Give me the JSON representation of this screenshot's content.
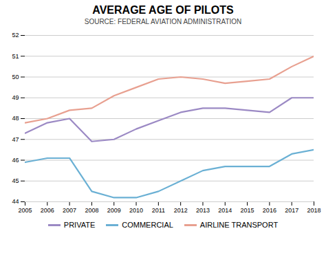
{
  "chart_data": {
    "type": "line",
    "title": "AVERAGE AGE OF PILOTS",
    "subtitle": "SOURCE: FEDERAL AVIATION ADMINISTRATION",
    "x": [
      2005,
      2006,
      2007,
      2008,
      2009,
      2010,
      2011,
      2012,
      2013,
      2014,
      2015,
      2016,
      2017,
      2018
    ],
    "series": [
      {
        "name": "PRIVATE",
        "color": "#9b89c4",
        "values": [
          47.3,
          47.8,
          48.0,
          46.9,
          47.0,
          47.5,
          47.9,
          48.3,
          48.5,
          48.5,
          48.4,
          48.3,
          49.0,
          49.0
        ]
      },
      {
        "name": "COMMERCIAL",
        "color": "#6ab0d4",
        "values": [
          45.9,
          46.1,
          46.1,
          44.5,
          44.2,
          44.2,
          44.5,
          45.0,
          45.5,
          45.7,
          45.7,
          45.7,
          46.3,
          46.5
        ]
      },
      {
        "name": "AIRLINE TRANSPORT",
        "color": "#e8a090",
        "values": [
          47.8,
          48.0,
          48.4,
          48.5,
          49.1,
          49.5,
          49.9,
          50.0,
          49.9,
          49.7,
          49.8,
          49.9,
          50.5,
          51.0
        ]
      }
    ],
    "xlim": [
      2005,
      2018
    ],
    "xticks": [
      2005,
      2006,
      2007,
      2008,
      2009,
      2010,
      2011,
      2012,
      2013,
      2014,
      2015,
      2016,
      2017,
      2018
    ],
    "ylim": [
      44,
      52
    ],
    "yticks": [
      44,
      45,
      46,
      47,
      48,
      49,
      50,
      51,
      52
    ],
    "grid": "y",
    "legend": "bottom"
  }
}
